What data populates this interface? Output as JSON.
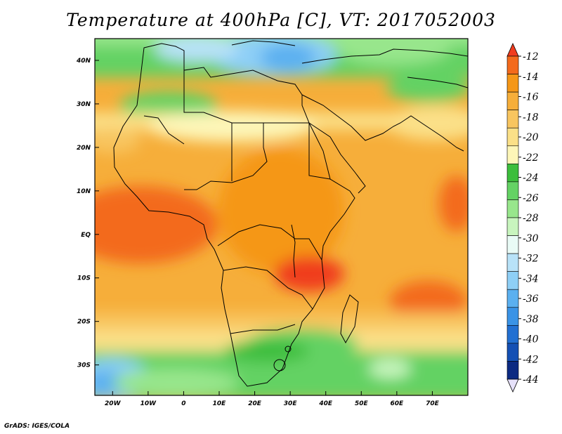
{
  "title": "Temperature at 400hPa [C], VT: 2017052003",
  "footer": "GrADS: IGES/COLA",
  "map": {
    "lon_range": [
      -25,
      80
    ],
    "lat_range": [
      -37,
      45
    ],
    "x_ticks": [
      {
        "value": -20,
        "label": "20W"
      },
      {
        "value": -10,
        "label": "10W"
      },
      {
        "value": 0,
        "label": "0"
      },
      {
        "value": 10,
        "label": "10E"
      },
      {
        "value": 20,
        "label": "20E"
      },
      {
        "value": 30,
        "label": "30E"
      },
      {
        "value": 40,
        "label": "40E"
      },
      {
        "value": 50,
        "label": "50E"
      },
      {
        "value": 60,
        "label": "60E"
      },
      {
        "value": 70,
        "label": "70E"
      }
    ],
    "y_ticks": [
      {
        "value": 40,
        "label": "40N"
      },
      {
        "value": 30,
        "label": "30N"
      },
      {
        "value": 20,
        "label": "20N"
      },
      {
        "value": 10,
        "label": "10N"
      },
      {
        "value": 0,
        "label": "EQ"
      },
      {
        "value": -10,
        "label": "10S"
      },
      {
        "value": -20,
        "label": "20S"
      },
      {
        "value": -30,
        "label": "30S"
      }
    ]
  },
  "colorbar": {
    "levels": [
      "-12",
      "-14",
      "-16",
      "-18",
      "-20",
      "-22",
      "-24",
      "-26",
      "-28",
      "-30",
      "-32",
      "-34",
      "-36",
      "-38",
      "-40",
      "-42",
      "-44"
    ],
    "colors_top_to_bottom": [
      "#f03c1e",
      "#f36a1c",
      "#f59718",
      "#f6ae3a",
      "#f8c55f",
      "#fbe088",
      "#fdf6b8",
      "#3cbe3c",
      "#64d264",
      "#98e68c",
      "#c8f5be",
      "#e9fbf6",
      "#b8e2f8",
      "#8ecff6",
      "#5bb0f0",
      "#3a93e6",
      "#2270d2",
      "#1450b4",
      "#0c2a82",
      "#e6e1fa"
    ]
  }
}
